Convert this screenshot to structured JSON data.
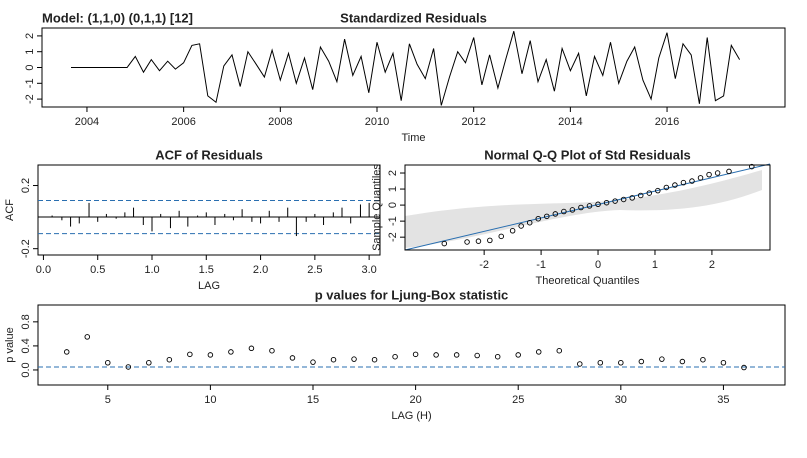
{
  "chart_data": [
    {
      "type": "line",
      "title": "Standardized Residuals",
      "annotation": "Model: (1,1,0) (0,1,1) [12]",
      "xlabel": "Time",
      "color": "#000000",
      "x": [
        2003.67,
        2003.83,
        2004.0,
        2004.17,
        2004.33,
        2004.5,
        2004.67,
        2004.83,
        2005.0,
        2005.17,
        2005.33,
        2005.5,
        2005.67,
        2005.83,
        2006.0,
        2006.17,
        2006.33,
        2006.5,
        2006.67,
        2006.83,
        2007.0,
        2007.17,
        2007.33,
        2007.5,
        2007.67,
        2007.83,
        2008.0,
        2008.17,
        2008.33,
        2008.5,
        2008.67,
        2008.83,
        2009.0,
        2009.17,
        2009.33,
        2009.5,
        2009.67,
        2009.83,
        2010.0,
        2010.17,
        2010.33,
        2010.5,
        2010.67,
        2010.83,
        2011.0,
        2011.17,
        2011.33,
        2011.5,
        2011.67,
        2011.83,
        2012.0,
        2012.17,
        2012.33,
        2012.5,
        2012.67,
        2012.83,
        2013.0,
        2013.17,
        2013.33,
        2013.5,
        2013.67,
        2013.83,
        2014.0,
        2014.17,
        2014.33,
        2014.5,
        2014.67,
        2014.83,
        2015.0,
        2015.17,
        2015.33,
        2015.5,
        2015.67,
        2015.83,
        2016.0,
        2016.17,
        2016.33,
        2016.5,
        2016.67,
        2016.83,
        2017.0,
        2017.17,
        2017.33,
        2017.5
      ],
      "values": [
        0,
        0,
        0,
        0,
        0,
        0,
        0,
        0,
        0.7,
        -0.3,
        0.5,
        -0.2,
        0.4,
        -0.1,
        0.3,
        1.4,
        1.5,
        -1.8,
        -2.2,
        0.1,
        0.8,
        -1.2,
        1.0,
        0.2,
        -0.6,
        1.1,
        -0.8,
        0.9,
        -1.0,
        0.6,
        -1.4,
        1.3,
        0.4,
        -0.9,
        1.8,
        -0.5,
        0.7,
        -1.6,
        1.6,
        -0.3,
        0.9,
        -2.1,
        1.5,
        0.2,
        -0.7,
        1.2,
        -2.4,
        -0.6,
        1.0,
        0.3,
        1.9,
        -1.1,
        0.8,
        -1.3,
        0.6,
        2.3,
        -0.4,
        1.7,
        -0.9,
        0.5,
        -1.5,
        1.2,
        -0.2,
        0.9,
        -1.8,
        0.7,
        -0.5,
        1.6,
        -1.0,
        0.4,
        1.3,
        -0.8,
        -2.0,
        0.6,
        2.2,
        -0.7,
        1.5,
        0.8,
        -2.3,
        1.9,
        -2.1,
        -1.8,
        1.4,
        0.5
      ],
      "xlim": [
        2003.07,
        2018.44
      ],
      "ylim": [
        -2.5,
        2.5
      ],
      "xticks": [
        2004,
        2006,
        2008,
        2010,
        2012,
        2014,
        2016
      ],
      "yticks": [
        -2,
        -1,
        0,
        1,
        2
      ]
    },
    {
      "type": "bar",
      "title": "ACF of Residuals",
      "xlabel": "LAG",
      "ylabel": "ACF",
      "color": "#000000",
      "hline_color": "#2a6fb0",
      "x": [
        0.08,
        0.17,
        0.25,
        0.33,
        0.42,
        0.5,
        0.58,
        0.67,
        0.75,
        0.83,
        0.92,
        1.0,
        1.08,
        1.17,
        1.25,
        1.33,
        1.42,
        1.5,
        1.58,
        1.67,
        1.75,
        1.83,
        1.92,
        2.0,
        2.08,
        2.17,
        2.25,
        2.33,
        2.42,
        2.5,
        2.58,
        2.67,
        2.75,
        2.83,
        2.92,
        3.0
      ],
      "values": [
        0.01,
        -0.02,
        -0.06,
        -0.04,
        0.09,
        -0.03,
        0.02,
        -0.01,
        0.03,
        0.06,
        -0.05,
        -0.09,
        0.02,
        -0.07,
        0.04,
        -0.06,
        0.01,
        0.03,
        -0.05,
        0.02,
        -0.02,
        0.05,
        -0.03,
        -0.04,
        0.04,
        -0.03,
        0.06,
        -0.12,
        -0.03,
        0.02,
        -0.05,
        0.03,
        0.06,
        -0.04,
        0.08,
        0.09
      ],
      "hlines": [
        0.105,
        -0.105
      ],
      "xlim": [
        -0.05,
        3.1
      ],
      "ylim": [
        -0.24,
        0.33
      ],
      "xticks": [
        {
          "value": 0,
          "label": "0.0"
        },
        0.5,
        {
          "value": 1,
          "label": "1.0"
        },
        1.5,
        {
          "value": 2,
          "label": "2.0"
        },
        2.5,
        {
          "value": 3,
          "label": "3.0"
        }
      ],
      "yticks": [
        -0.2,
        0.2
      ]
    },
    {
      "type": "scatter",
      "title": "Normal Q-Q Plot of Std Residuals",
      "xlabel": "Theoretical Quantiles",
      "ylabel": "Sample Quantiles",
      "color": "#000000",
      "x": [
        -2.7,
        -2.3,
        -2.1,
        -1.9,
        -1.7,
        -1.5,
        -1.35,
        -1.2,
        -1.05,
        -0.9,
        -0.75,
        -0.6,
        -0.45,
        -0.3,
        -0.15,
        0,
        0.15,
        0.3,
        0.45,
        0.6,
        0.75,
        0.9,
        1.05,
        1.2,
        1.35,
        1.5,
        1.65,
        1.8,
        1.95,
        2.1,
        2.3,
        2.7
      ],
      "values": [
        -2.4,
        -2.3,
        -2.25,
        -2.2,
        -1.95,
        -1.6,
        -1.3,
        -1.1,
        -0.85,
        -0.7,
        -0.55,
        -0.4,
        -0.3,
        -0.15,
        -0.05,
        0.05,
        0.15,
        0.25,
        0.35,
        0.45,
        0.6,
        0.75,
        0.9,
        1.1,
        1.25,
        1.4,
        1.5,
        1.7,
        1.9,
        2.0,
        2.1,
        2.4
      ],
      "xlim": [
        -3.39,
        3.02
      ],
      "ylim": [
        -2.8,
        2.5
      ],
      "xticks": [
        -2,
        -1,
        0,
        1,
        2
      ],
      "yticks": [
        -2,
        -1,
        0,
        1,
        2
      ]
    },
    {
      "type": "scatter",
      "title": "p values for Ljung-Box statistic",
      "xlabel": "LAG (H)",
      "ylabel": "p value",
      "color": "#000000",
      "hline_color": "#2a6fb0",
      "x": [
        3,
        4,
        5,
        6,
        7,
        8,
        9,
        10,
        11,
        12,
        13,
        14,
        15,
        16,
        17,
        18,
        19,
        20,
        21,
        22,
        23,
        24,
        25,
        26,
        27,
        28,
        29,
        30,
        31,
        32,
        33,
        34,
        35,
        36
      ],
      "values": [
        0.3,
        0.55,
        0.12,
        0.05,
        0.12,
        0.17,
        0.26,
        0.25,
        0.3,
        0.36,
        0.32,
        0.2,
        0.13,
        0.17,
        0.18,
        0.17,
        0.22,
        0.26,
        0.25,
        0.25,
        0.24,
        0.22,
        0.25,
        0.3,
        0.32,
        0.1,
        0.12,
        0.12,
        0.14,
        0.18,
        0.14,
        0.17,
        0.12,
        0.04
      ],
      "hlines": [
        0.05
      ],
      "xlim": [
        1.6,
        38.0
      ],
      "ylim": [
        -0.25,
        1.08
      ],
      "xticks": [
        5,
        10,
        15,
        20,
        25,
        30,
        35
      ],
      "yticks": [
        {
          "value": 0,
          "label": "0.0"
        },
        0.4,
        0.8
      ]
    }
  ]
}
